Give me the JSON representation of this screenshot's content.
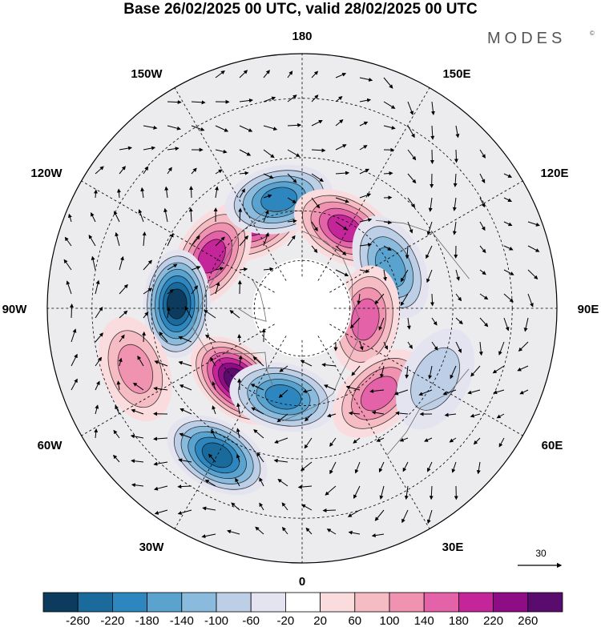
{
  "header": {
    "title": "Base 26/02/2025 00 UTC, valid 28/02/2025 00 UTC",
    "brand": "MODES",
    "brand_mark": "©"
  },
  "map": {
    "projection": "north-polar-stereographic",
    "longitude_labels": {
      "top": "180",
      "top_left": "150W",
      "top_right": "150E",
      "upper_left": "120W",
      "upper_right": "120E",
      "left": "90W",
      "right": "90E",
      "lower_left": "60W",
      "lower_right": "60E",
      "bottom_left": "30W",
      "bottom_right": "30E",
      "bottom": "0"
    },
    "reference_vector": {
      "label": "30"
    }
  },
  "colorbar": {
    "colors": [
      "#0d3b5e",
      "#1b6a9c",
      "#2e86bf",
      "#5aa3cf",
      "#8bbbdc",
      "#bccfe6",
      "#e4e4f1",
      "#ffffff",
      "#fbdcde",
      "#f6bcc3",
      "#ef93b0",
      "#e462a7",
      "#c4269a",
      "#8e0d87",
      "#5a0c6e"
    ],
    "labels": [
      "-260",
      "-220",
      "-180",
      "-140",
      "-100",
      "-60",
      "-20",
      "20",
      "60",
      "100",
      "140",
      "180",
      "220",
      "260"
    ]
  },
  "anomalies": [
    {
      "name": "pos-150w",
      "lon": -152,
      "lat": 60,
      "value": 180
    },
    {
      "name": "pos-120w",
      "lon": -120,
      "lat": 58,
      "value": 160
    },
    {
      "name": "neg-170w",
      "lon": -168,
      "lat": 56,
      "value": -160
    },
    {
      "name": "pos-150e",
      "lon": 152,
      "lat": 62,
      "value": 170
    },
    {
      "name": "neg-115e",
      "lon": 115,
      "lat": 60,
      "value": -150
    },
    {
      "name": "neg-90w",
      "lon": -92,
      "lat": 52,
      "value": -250
    },
    {
      "name": "pos-80e",
      "lon": 80,
      "lat": 70,
      "value": 140
    },
    {
      "name": "pos-45w",
      "lon": -42,
      "lat": 60,
      "value": 250
    },
    {
      "name": "neg-15w",
      "lon": -12,
      "lat": 62,
      "value": -190
    },
    {
      "name": "neg-35w",
      "lon": -30,
      "lat": 40,
      "value": -200
    },
    {
      "name": "pos-40e",
      "lon": 42,
      "lat": 55,
      "value": 140
    },
    {
      "name": "neg-60e",
      "lon": 62,
      "lat": 45,
      "value": -60
    },
    {
      "name": "pos-75w",
      "lon": -70,
      "lat": 38,
      "value": 80
    }
  ]
}
